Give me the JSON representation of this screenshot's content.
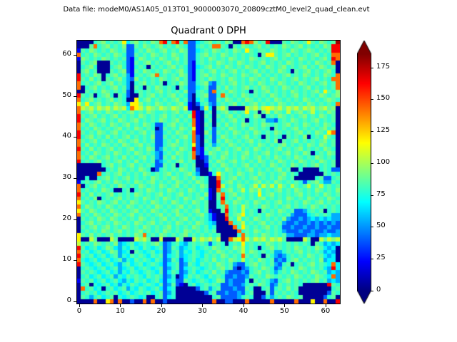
{
  "figure": {
    "header": "Data file: modeM0/AS1A05_013T01_9000003070_20809cztM0_level2_quad_clean.evt",
    "title": "Quadrant 0 DPH"
  },
  "chart_data": {
    "type": "heatmap",
    "title": "Quadrant 0 DPH",
    "xlabel": "",
    "ylabel": "",
    "grid_size": [
      64,
      64
    ],
    "x_range": [
      -0.5,
      63.5
    ],
    "y_range": [
      -0.5,
      63.5
    ],
    "x_ticks": [
      0,
      10,
      20,
      30,
      40,
      50,
      60
    ],
    "y_ticks": [
      0,
      10,
      20,
      30,
      40,
      50,
      60
    ],
    "colormap": "jet",
    "vmin": 0,
    "vmax": 186,
    "colorbar_ticks": [
      0,
      25,
      50,
      75,
      100,
      125,
      150,
      175
    ],
    "colorbar_extend": "both",
    "value_palette": {
      "N": 4,
      "B": 22,
      "b": 40,
      "c": 55,
      "-": 68,
      ".": 78,
      ",": 86,
      "g": 94,
      "y": 105,
      "Y": 118,
      "o": 143,
      "r": 164,
      "R": 180
    },
    "grid_rows_top_to_bottom": [
      "NNNN.,g.,.,Y-,g.,.g,or.or.obb-.,g.,.g,NNorog.,rNNN,.g,.,Y,.g,.,R",
      "NNN,o.,g.,.gbb,.g,.,g.,.g,.bb.,.,oo,.N,.g,.,g.,.,.g,.,g.,.,.g,rr",
      "B,.g,.,.g,.,bb.,.g,.,g.,.g,bb-.,.g,.,.g,.Y,.,,.g,.,.g,.,g,.,.,rr",
      "o.,.g,.,.g,.bb,.,.g,.,.g,.,bb.,g.,.g,.,.,.,.N,YY,.,g.,.,.,g.,.oo",
      "Bg,.,.g,.,.,bB.g,.,.g,.,g.,bb.,.g,.,.g,.,.g,.,.,g.,.,.g,.,.,g.ro",
      "N,.,gNNN,.,.bB,.,g.,.,g.,.,bB.,.,.g,.,.g,.,.,g.,.,.g,.,.,.g,.,oN",
      "N.,g.NNN.,g.bB.,.N,.,.,g.,.bB-.,g.,.g,.,.g,.,.g,.,g.,.,g.,.g,.,N",
      "N,g.,NNN,.,gbB,.g,.,.g,.,g.bB.,.,g.,.,g.,.,g.,.,.g,.N,.,g.,.,g.N",
      "r.,.g,N.,g.,cB.,.,go.,.,.g,bB.,g.,.g,.,.g,.,g.,.,.,g.,.g,.,.g,.o",
      "r,.g.,N,.,g.cbg.,.,.g,.,g.,bB.,.g,.,.g,.,.g,.,.g,.,.,g.,.,g.,.oo",
      "o.,.,g.,g.,.cN.,g.,.,N.,.g,bb.,gcb.,.,g.,.,.g,.,.g,.,.g,.,.,g.,o",
      "oN.,g.,.,g.,cN,.N,.g,.,.N,.bb-.,bb,.g.,.,g.,.g,.,.g,.,.,g.,.,.,o",
      "NN,.,.g,.,.,bN.,.,.,g.,.,.gbb.,.bo.,.g,.,.N,.,g.,.,.g,.,.,g.Y,.g",
      "r,.,N.,g.N,.bNN,.,g.,.,g.,.bN.,gbb.o,.,.g,.,.,.g,.,.,g.,.,.g,.,g",
      "o.,g.,.,g.,.NNY.,g.,.,.,g.,bN-,.bb,.g,.,.g,.,.,.g,.,.,.g,.,.,g,.",
      "Y,Y.,g.,.g,.cYYg.,.g,.,.,g.BNb.,cb.,.,g.,.,g.,.,.g,.,.,.g,.,.,.o",
      "oygy,ygy,ygy-oYy,yg,yg,yg,yBNNcy-Ngy,NNNNygy,yYygy,ygy,ygy,gy,gN",
      "o.,g.,.g,.,.,g.,.g,..,.,g.,.rBN.,N.,g.,.,Y.,N,y.g,.y.,g.,y.,.g,N",
      "r,.,g.,.,g.,.,.g,.,.,g.,.,.grBN,.N,.,g.,.,.g,N.,.g,.,.,g.,.g,.,N",
      "r.g,.,g.,.g,.,g.,.,.g,.,g.,.oBN.,N.,.,g.,N.,.,ccb.,.g,.,.,g.,.,N",
      "o,.g,.,.g,.,g.,.g,.bb.,g.,.,oBN,.N,.g.,.g,.,.g,.,.,g.,.g,.,.g,.N",
      "o.,.g,.,.,g.,.g,.,.Nb,.,.g,.YBN.,b.,.g,.,.g,.,.N,.,.,g.,.,.,g.,N",
      "r,.,.g,.,g.,.,.,g.,bb.,.g,.,oBNg.b,.,.g,.,.g,.,.g,.,.,g.,.g,.YoN",
      "r.,g.,.g.,.,g.,.,.gbb,.,.,g.obN.,b.g,.,.,g.,.N,.,.N,.,.gN.,.y,.N",
      "o,.,g.,.,.g,.,g.,.,bb.,.g.,.obN,.b,.g,.,.,g.,.,.gN,.,g.,.,.,g.,N",
      "o.g.,.g,.,.g,.,g.,.bb.,g,.,.YbN.,c.,.g,.,.,.g,.,.,g.,.,.g,.g,.,N",
      "r,.g.,.,g.,.,g.,.g,bc,.,.g,.rbB,.,g.,.,g.,.g,.,.,g.,.,g.,.,.g,.N",
      "o.,.g,.,.g,.,.g,.,.cb.,.g,.,obB.g,.,g.,.,g.,.,g.,.,g.,.g,N.,.g,N",
      "o,.g,.,g.,.g.,.,g.,cb,.g.,.,oNBb.,.g,.,.g,.,g.,.g,.,.g,.,.g,.,.N",
      "r.,.,g.,.,g.,.g.,.,bc.,.,g.,.NNb,.g,.,g.,.,.g,.,.g,.,.g,.,.g,.,N",
      "NNNNNN.,g.,.,g.,.,.bb,.,N.,.,NNB.,.g,.,.,g.,.,.g,.,.g,.,.,g.,.,N",
      "NNNNNNN.,.g,.,.g,.Nb.,.,.g,.,bNN,.,.g,.,.,g.,.,.,g.,NN.NNNN.,.bb",
      "NNNNNo.,.,g.,.,.g,.,.,g.,.,g.cNNB.Y,.,.g,.,.g,.,.,g.,.NNNNNN,.,.",
      "NN.NN.,g.,.,g.,.,.g,.,.g,.,.g.,.NNo,.,g.,.,g.,.,.g,.,NNNNN.,bb.,",
      "B.,.,g.,.g,.,.g,.,g.,.,.g,.,.g,.NNr.,g.,.,.,g.,.g,.,.,.b.,g.cc,.",
      "oN.,g.,.,.g,.,.g,.,.g,.,g.,.,.g,NNry.,.g,.,y.y,y.y,.y,.,y.,y.,.,",
      "o.,.,.g,.NN.,N.,.g,.,.g,.,.g,.,.BNo.,g.,y.g,y.,.,g.,.g,.,.g,.,.g",
      "r,.g.,.,g.,.,.g,.,.,g.,.,g.,.,.gBN,o.,g.,.,.Y.,g.,.,.,g.,.,.g,.,",
      "o.,.gN.,.,g.,.,.g,.,.g,.,.g,.,g.BN,r.,.g,.,.,g.,.,.g,.,.g,.,.g,.",
      "Y,.,.g,.,g.,.g,.,.g,.,.g,.,.g,.,NN.o,.g,.,.g,.,.,g.,.,.g,.,g.,.,",
      "o.g,.,.g,.,.g,.,.,.g,.,.,g.,.,.,NN.,o.,.y,.,.g,.,.,g.,.,.g,.,.,.",
      "Y,.g,.,.g,.,.,g.,.g,.,.,g.,.,g.,BNN,r.,.y.,.N,.,.g,.,bbc.,.,N.,.",
      "o.,.g,.,.g,.,g.,.,.,g.,.g,.,.,g.cBNNo.,gY.,.,.g,.,.,cbbb-.,.,.cc",
      "N,.,.g,.g,.,.,.g,.,.,g.,.,g.,.,.cBNNr,.y.,.g,.,.,.gcbbcbc-c-c-cc",
      "N.,g.,.,.g,.,.g,.,g.,.,.g,.,.g,.-cNNNo.,y.,.,g.,.,cbbcbbcbcbcbcb",
      "N,.,g.,g.,.g,.,.g,.,.,g.,.,.g,.,-.NNNNo.Y,.,.,g.,.bbcbbcbbcbbcbb",
      "N.,.,.g,.,g.,.,g.,.,.g,.,.g,.,.,.,NNNNNo.,.g,.,.,.cbbbcbbcbbcbbc",
      "Y,.g.,.,g.,.,.g,o.,.g,.,.,g.,.,.,.,NNNN.o,.,.g,.,.,ccbbbccbcc-cc",
      "YNNy,NNNy,NNNNygy,NNyNNNy,NNy,ygy,yNNoyYoy,ygy,ygy,NNNNy,NNy,ygy",
      "y.,.g,.,.gc-.,-.,.,g.bc.,-c.,.,.b.,.N.,.Y.,.,.g,.,.,.,.,.N,.c-c-",
      "r,-.,-.g,-c.-,.-,.-.,bc,.c-.,-.,.g,.,.g,y.,.N.,g.,.,.g,.,.g,-c-N",
      "o.,-.,-.g,c-.N,.-.,-.bc.,c.-,.-.,.g,.,.,y.g,.,.,cc.,.,g.,.,.c-cN",
      "r,.,-.,-.,c.-,.,.-,.,b-.,c-.,.-,.,.g,.,.o,.,.N,.cbc.,.,.g,.,-c-N",
      "o.-.,-.,-.,c.-,.,.-,.bc,.b-.,-.,.g.,.g,.y.,.g,.,bcb.,g.,.,.gc--N",
      "r,.-.,-.,-c.,-.,-.,.-b-.,bc,.-,.,.g,.,cbb.,g.,.,cb.,N.,.,g.,.-o-",
      "N.,.-.,-.,c-.,-.,.-.,bc.,b-.,.-.,.,g.,bNbc.,.g,.bc,.,.g,.,.,-cr-",
      "N,.,.-.,-.c.-,.-.,.-,b-,.bc.,-.,.g.,cbbbcb.,g.,.c.,.g,.,.g,.,c-c",
      "N.,-.,-.,c.-,.,.-,.,.bc.Nb-,.,.-,.,.bbcbbc,.,.g,.,.,.g,.,.g,.-oc",
      "B,.,-.,-.,-c.-,.,-.,-b-.bb,.-.,.-.g,bcbbb.N,.,.cb.,g.,.,.,g.,c-c",
      "N.,N.-.,-.c.-,.-.,.-,bc,bBN.,-.,.,.bbcbbc.,.g,.bc,.,.,.NNNNNNr,",
      "No.,-.N.,-.,c.-,.-.,-b-.NNNNNb.,c.,bbbcbb,.NN.,b.,.g.,NNNNNNNN.,",
      "N.,.,-.,.,-.,-.,.,-.,bc.NNNNNNNb.,bbcbbcb.,NNN,b,.,.,.NNNNNNNb,.",
      "N,.c.,-.,N.-.,.-.NN.,b-.NNNNNNNNN.,bbbbc.,.NNb.c.,.g,.,NNNNNb.,N",
      "NNNNoNNYoNoNNbNNoNoNNbNNNNNNNNNNNoNNbbNNNoNNNNNoNNNNNoNNNYNNoNNr"
    ]
  },
  "layout_hints": {
    "legend": "none",
    "grid": "off",
    "colorbar_position": "right"
  }
}
